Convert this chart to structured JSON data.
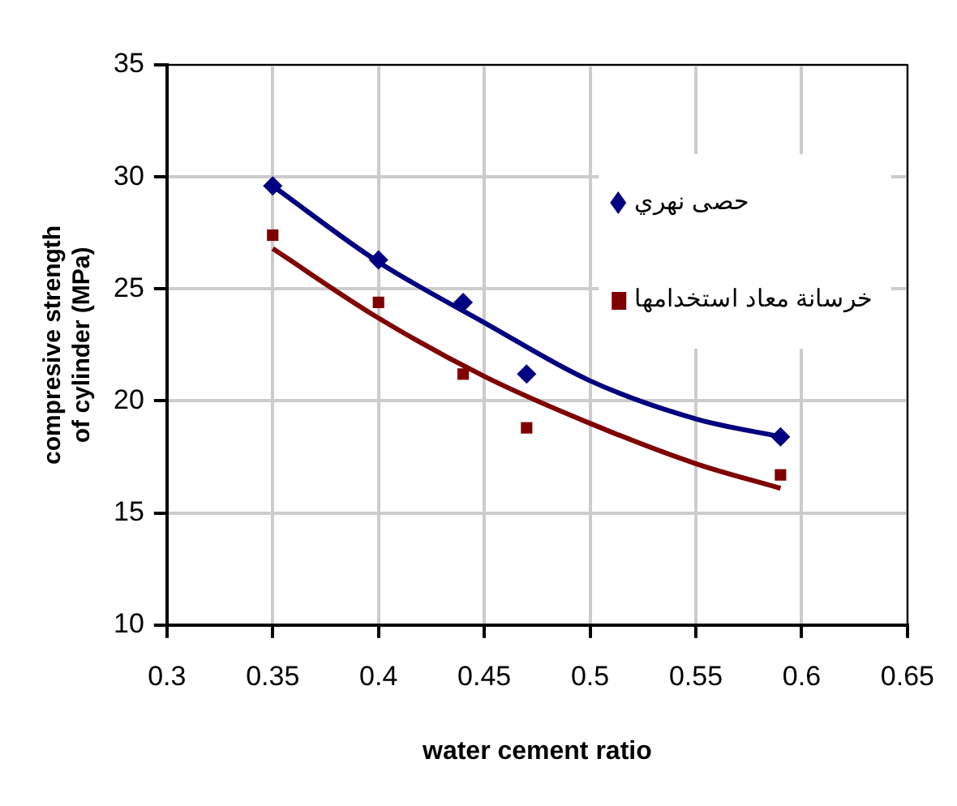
{
  "chart_data": {
    "type": "scatter",
    "xlabel": "water cement ratio",
    "ylabel": "compresive strength of cylinder (MPa)",
    "xlim": [
      0.3,
      0.65
    ],
    "xticks": [
      0.3,
      0.35,
      0.4,
      0.45,
      0.5,
      0.55,
      0.6,
      0.65
    ],
    "ylim": [
      10,
      35
    ],
    "yticks": [
      10,
      15,
      20,
      25,
      30,
      35
    ],
    "grid": true,
    "legend": "top right",
    "series": [
      {
        "name": "حصى نهري",
        "marker": "diamond",
        "color": "#000080",
        "x": [
          0.35,
          0.4,
          0.44,
          0.47,
          0.59
        ],
        "values": [
          29.6,
          26.3,
          24.4,
          21.2,
          18.4
        ]
      },
      {
        "name": "خرسانة معاد استخدامها",
        "marker": "square",
        "color": "#800000",
        "x": [
          0.35,
          0.4,
          0.44,
          0.47,
          0.59
        ],
        "values": [
          27.4,
          24.4,
          21.2,
          18.8,
          16.7
        ]
      },
      {
        "type": "line",
        "marker": "none",
        "color": "#000080",
        "x": [
          0.35,
          0.4,
          0.45,
          0.5,
          0.55,
          0.59
        ],
        "values": [
          29.6,
          26.2,
          23.5,
          20.9,
          19.2,
          18.4
        ]
      },
      {
        "type": "line",
        "marker": "none",
        "color": "#800000",
        "x": [
          0.35,
          0.4,
          0.45,
          0.5,
          0.55,
          0.59
        ],
        "values": [
          26.8,
          23.7,
          21.1,
          19.0,
          17.2,
          16.1
        ]
      }
    ]
  }
}
